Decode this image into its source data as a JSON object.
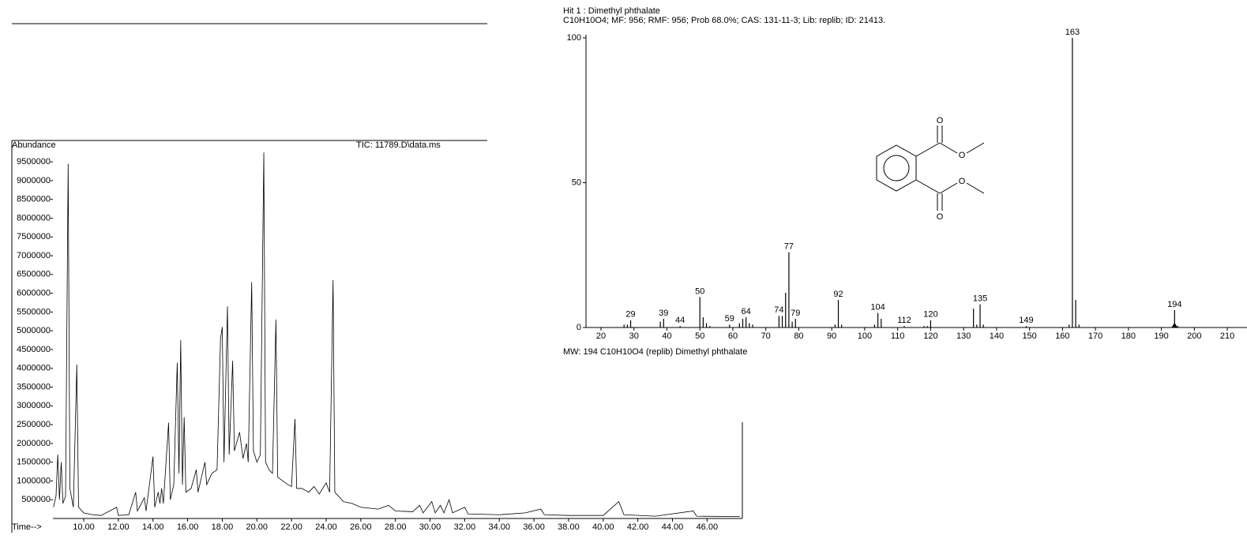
{
  "chart_data": [
    {
      "type": "line",
      "title": "TIC: 11789.D\\data.ms",
      "ylabel": "Abundance",
      "xlabel": "Time-->",
      "color": "#000000",
      "xlim": [
        8.22,
        47.9
      ],
      "ylim": [
        0,
        10070000
      ],
      "xticks": [
        {
          "value": 10,
          "label": "10.00"
        },
        {
          "value": 12,
          "label": "12.00"
        },
        {
          "value": 14,
          "label": "14.00"
        },
        {
          "value": 16,
          "label": "16.00"
        },
        {
          "value": 18,
          "label": "18.00"
        },
        {
          "value": 20,
          "label": "20.00"
        },
        {
          "value": 22,
          "label": "22.00"
        },
        {
          "value": 24,
          "label": "24.00"
        },
        {
          "value": 26,
          "label": "26.00"
        },
        {
          "value": 28,
          "label": "28.00"
        },
        {
          "value": 30,
          "label": "30.00"
        },
        {
          "value": 32,
          "label": "32.00"
        },
        {
          "value": 34,
          "label": "34.00"
        },
        {
          "value": 36,
          "label": "36.00"
        },
        {
          "value": 38,
          "label": "38.00"
        },
        {
          "value": 40,
          "label": "40.00"
        },
        {
          "value": 42,
          "label": "42.00"
        },
        {
          "value": 44,
          "label": "44.00"
        },
        {
          "value": 46,
          "label": "46.00"
        }
      ],
      "yticks": [
        500000,
        1000000,
        1500000,
        2000000,
        2500000,
        3000000,
        3500000,
        4000000,
        4500000,
        5000000,
        5500000,
        6000000,
        6500000,
        7000000,
        7500000,
        8000000,
        8500000,
        9000000,
        9500000
      ],
      "x": [
        8.25,
        8.4,
        8.5,
        8.6,
        8.7,
        8.8,
        8.95,
        9.1,
        9.2,
        9.4,
        9.6,
        9.7,
        10.0,
        10.5,
        11.0,
        11.9,
        12.0,
        12.6,
        13.0,
        13.1,
        13.5,
        13.6,
        14.0,
        14.1,
        14.3,
        14.4,
        14.5,
        14.6,
        14.9,
        15.0,
        15.2,
        15.4,
        15.5,
        15.6,
        15.7,
        15.8,
        15.9,
        16.2,
        16.5,
        16.6,
        17.0,
        17.1,
        17.4,
        17.7,
        17.9,
        18.0,
        18.1,
        18.3,
        18.4,
        18.6,
        18.7,
        19.0,
        19.2,
        19.4,
        19.5,
        19.7,
        19.8,
        20.0,
        20.2,
        20.4,
        20.5,
        20.7,
        20.9,
        21.1,
        21.2,
        21.5,
        21.8,
        22.0,
        22.2,
        22.3,
        22.6,
        23.0,
        23.3,
        23.6,
        24.0,
        24.2,
        24.4,
        24.5,
        25.0,
        25.5,
        26.0,
        27.0,
        27.6,
        28.0,
        29.0,
        29.4,
        29.6,
        30.1,
        30.3,
        30.6,
        30.8,
        31.1,
        31.3,
        32.0,
        32.2,
        34.0,
        35.5,
        36.4,
        36.6,
        38.0,
        40.0,
        40.9,
        41.2,
        43.0,
        45.2,
        45.4,
        47.9
      ],
      "values": [
        300000,
        600000,
        1700000,
        500000,
        1500000,
        400000,
        600000,
        9450000,
        800000,
        300000,
        4100000,
        300000,
        150000,
        100000,
        80000,
        300000,
        80000,
        100000,
        700000,
        200000,
        550000,
        200000,
        1650000,
        300000,
        700000,
        400000,
        800000,
        400000,
        2550000,
        500000,
        900000,
        4150000,
        1200000,
        4750000,
        900000,
        2700000,
        700000,
        800000,
        1300000,
        700000,
        1500000,
        900000,
        1200000,
        1300000,
        4800000,
        5100000,
        1500000,
        5650000,
        1700000,
        4200000,
        1800000,
        2300000,
        1600000,
        2000000,
        1500000,
        6300000,
        1800000,
        1500000,
        1700000,
        9750000,
        1500000,
        1300000,
        1200000,
        5300000,
        1100000,
        1000000,
        900000,
        850000,
        2650000,
        800000,
        800000,
        700000,
        850000,
        650000,
        950000,
        700000,
        6350000,
        700000,
        450000,
        400000,
        300000,
        250000,
        350000,
        200000,
        180000,
        350000,
        150000,
        450000,
        150000,
        350000,
        150000,
        500000,
        150000,
        300000,
        120000,
        100000,
        150000,
        250000,
        100000,
        80000,
        80000,
        450000,
        100000,
        60000,
        200000,
        60000,
        50000
      ]
    },
    {
      "type": "bar",
      "title": "Hit 1 : Dimethyl phthalate",
      "subtitle": "C10H10O4; MF: 956; RMF: 956; Prob 68.0%; CAS: 131-11-3; Lib: replib; ID: 21413.",
      "caption": "MW: 194 C10H10O4 (replib) Dimethyl phthalate",
      "color": "#000000",
      "xlim": [
        15.45,
        215.97
      ],
      "ylim": [
        0,
        100
      ],
      "xticks": [
        20,
        30,
        40,
        50,
        60,
        70,
        80,
        90,
        100,
        110,
        120,
        130,
        140,
        150,
        160,
        170,
        180,
        190,
        200,
        210
      ],
      "yticks": [
        0,
        50,
        100
      ],
      "x": [
        27,
        28,
        29,
        38,
        39,
        44,
        50,
        51,
        52,
        53,
        59,
        62,
        63,
        64,
        65,
        66,
        74,
        75,
        76,
        77,
        78,
        79,
        91,
        92,
        93,
        103,
        104,
        105,
        112,
        118,
        119,
        120,
        133,
        134,
        135,
        136,
        149,
        162,
        163,
        164,
        165,
        194,
        195
      ],
      "values": [
        1,
        1,
        2.5,
        2,
        3,
        0.5,
        10.5,
        3.5,
        1.5,
        0.5,
        1,
        1.5,
        3,
        3.5,
        1.5,
        1,
        4,
        4,
        12,
        26,
        2,
        3,
        1,
        9.5,
        1,
        1,
        5,
        3,
        0.5,
        0.5,
        0.5,
        2.5,
        6.5,
        1,
        8,
        1,
        0.5,
        1,
        100,
        9.5,
        1,
        6,
        0.5
      ],
      "peak_labels": [
        29,
        39,
        44,
        50,
        59,
        64,
        74,
        77,
        79,
        92,
        104,
        112,
        120,
        135,
        149,
        163,
        194
      ],
      "mw_marker": 194,
      "structure_labels": [
        "O",
        "O",
        "O",
        "O"
      ]
    }
  ]
}
